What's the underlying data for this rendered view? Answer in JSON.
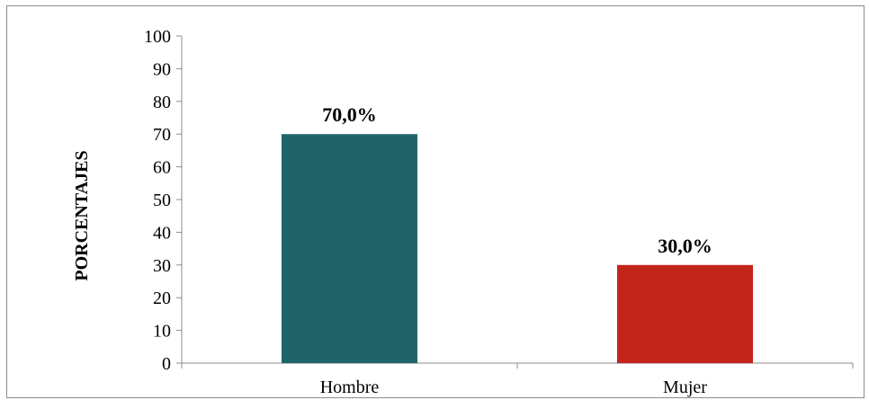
{
  "chart_data": {
    "type": "bar",
    "categories": [
      "Hombre",
      "Mujer"
    ],
    "values": [
      70.0,
      30.0
    ],
    "data_labels": [
      "70,0%",
      "30,0%"
    ],
    "bar_colors": [
      "#216468",
      "#c2261b"
    ],
    "ylabel": "PORCENTAJES",
    "xlabel": "",
    "ylim": [
      0,
      100
    ],
    "yticks": [
      0,
      10,
      20,
      30,
      40,
      50,
      60,
      70,
      80,
      90,
      100
    ],
    "grid": false,
    "legend": "none"
  }
}
